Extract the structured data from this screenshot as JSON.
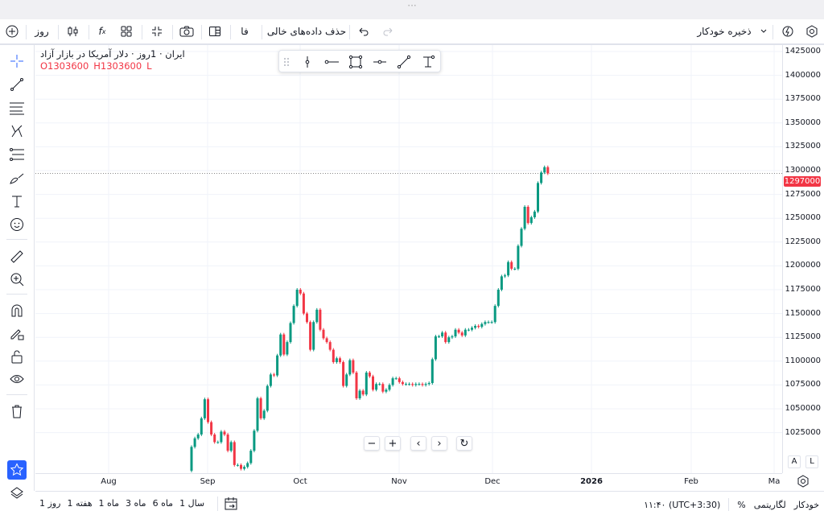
{
  "colors": {
    "up": "#089981",
    "down": "#f23645",
    "accent": "#2962ff",
    "grid": "#f0f3fa",
    "price_tag": "#f23645"
  },
  "window": {
    "handle": "···"
  },
  "toolbar": {
    "add_icon": "plus-circle-icon",
    "interval": "روز",
    "chart_type_icon": "candles-icon",
    "indicators_icon": "fx-icon",
    "layouts_icon": "grid-icon",
    "fullscreen_icon": "collapse-icon",
    "snapshot_icon": "camera-icon",
    "panel_icon": "panel-icon",
    "language": "فا",
    "remove_empty": "حذف داده‌های خالی",
    "undo_icon": "undo-icon",
    "redo_icon": "redo-icon",
    "autosave": "ذخیره خودکار",
    "alert_icon": "alert-icon",
    "settings_icon": "settings-icon"
  },
  "legend": {
    "title": "ایران · 1روز · دلار آمریکا در بازار آزاد",
    "open": "O1303600",
    "high": "H1303600",
    "low": "L"
  },
  "drawing_tools": [
    "crosshair",
    "trend-line",
    "horizontal-lines",
    "pattern",
    "fib",
    "brush",
    "text",
    "emoji",
    "ruler",
    "zoom-in",
    "magnet",
    "lock-drawing",
    "unlock",
    "eye",
    "trash",
    "star",
    "layers"
  ],
  "float_tools": [
    "vertical-line",
    "horizontal-ray",
    "rectangle",
    "horizontal-line",
    "trend-line",
    "text-anchor"
  ],
  "nav": {
    "zoom_out": "−",
    "zoom_in": "+",
    "left": "‹",
    "right": "›",
    "reset": "↻"
  },
  "price_axis": {
    "labels": [
      "1425000",
      "1400000",
      "1375000",
      "1350000",
      "1325000",
      "1300000",
      "1275000",
      "1250000",
      "1225000",
      "1200000",
      "1175000",
      "1150000",
      "1125000",
      "1100000",
      "1075000",
      "1050000",
      "1025000"
    ],
    "current": "1297000"
  },
  "time_axis": {
    "labels": [
      "Aug",
      "Sep",
      "Oct",
      "Nov",
      "Dec",
      "2026",
      "Feb",
      "Ma"
    ]
  },
  "scale_buttons": {
    "auto": "A",
    "log": "L"
  },
  "bottom": {
    "periods": [
      "1 روز",
      "1 هفته",
      "1 ماه",
      "3 ماه",
      "6 ماه",
      "1 سال"
    ],
    "time": "۱۱:۴۰ (UTC+3:30)",
    "percent": "%",
    "log": "لگاریتمی",
    "auto": "خودکار"
  },
  "chart_data": {
    "type": "candlestick",
    "ylim": [
      1000000,
      1430000
    ],
    "last": {
      "open": 1303600,
      "high": 1303600,
      "close": 1297000
    },
    "first_open": 985000,
    "closes": [
      1010000,
      1019000,
      1023000,
      1040000,
      1060000,
      1036000,
      1023000,
      1015000,
      1015000,
      1026000,
      1023000,
      1006000,
      1015000,
      991000,
      991000,
      987000,
      989000,
      993000,
      1006000,
      1027000,
      1061000,
      1040000,
      1048000,
      1074000,
      1086000,
      1085000,
      1106000,
      1128000,
      1107000,
      1120000,
      1140000,
      1158000,
      1175000,
      1171000,
      1150000,
      1141000,
      1112000,
      1141000,
      1154000,
      1133000,
      1124000,
      1120000,
      1112000,
      1099000,
      1103000,
      1099000,
      1074000,
      1086000,
      1101000,
      1088000,
      1061000,
      1069000,
      1065000,
      1088000,
      1084000,
      1070000,
      1076000,
      1076000,
      1068000,
      1070000,
      1075000,
      1082000,
      1082000,
      1078000,
      1076000,
      1076000,
      1076000,
      1075000,
      1076000,
      1076000,
      1075000,
      1076000,
      1077000,
      1102000,
      1126000,
      1126000,
      1130000,
      1120000,
      1125000,
      1126000,
      1133000,
      1130000,
      1127000,
      1133000,
      1133000,
      1135000,
      1137000,
      1136000,
      1139000,
      1141000,
      1141000,
      1141000,
      1158000,
      1175000,
      1189000,
      1190000,
      1204000,
      1197000,
      1197000,
      1221000,
      1239000,
      1262000,
      1245000,
      1251000,
      1257000,
      1287000,
      1298000,
      1303600,
      1297000
    ]
  }
}
